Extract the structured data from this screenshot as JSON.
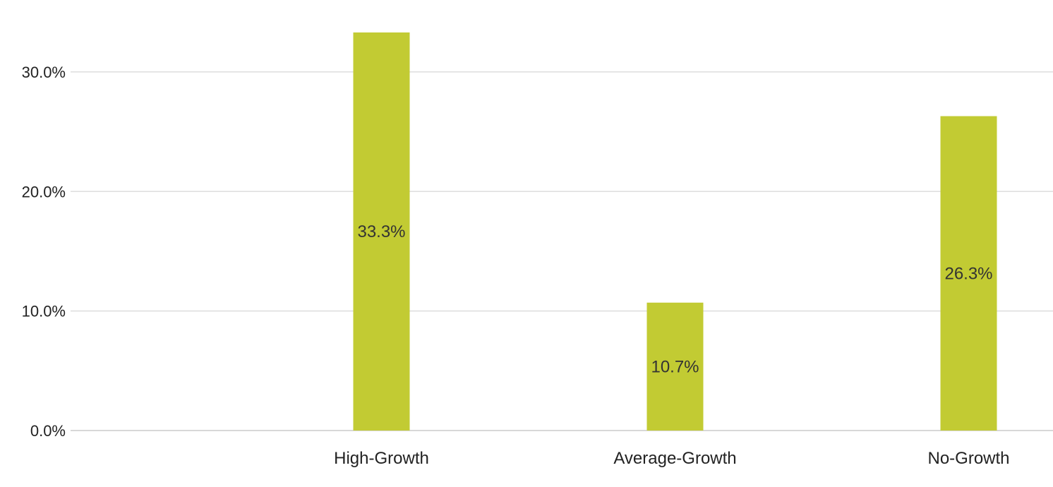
{
  "chart_data": {
    "type": "bar",
    "title": "",
    "xlabel": "",
    "ylabel": "",
    "categories": [
      "",
      "High-Growth",
      "Average-Growth",
      "No-Growth"
    ],
    "values": [
      null,
      33.3,
      10.7,
      26.3
    ],
    "data_labels": [
      "",
      "33.3%",
      "10.7%",
      "26.3%"
    ],
    "ylim": [
      0,
      33.3
    ],
    "yticks": [
      0,
      10,
      20,
      30
    ],
    "ytick_labels": [
      "0.0%",
      "10.0%",
      "20.0%",
      "30.0%"
    ],
    "bar_color": "#c2cb33",
    "grid": true,
    "legend": "none"
  }
}
